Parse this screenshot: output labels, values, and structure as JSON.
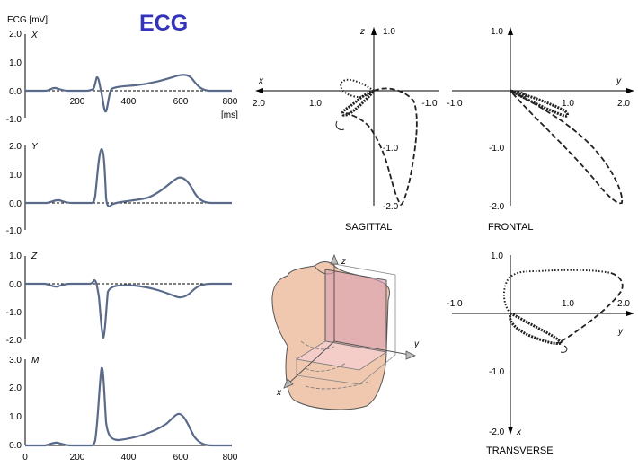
{
  "title": "ECG",
  "ecg_axis_label": "ECG [mV]",
  "time_unit": "[ms]",
  "time_ticks": [
    "0",
    "200",
    "400",
    "600",
    "800"
  ],
  "panels": [
    {
      "id": "x",
      "label": "X",
      "yticks": [
        "2.0",
        "1.0",
        "0.0",
        "-1.0"
      ],
      "show_time": true
    },
    {
      "id": "y",
      "label": "Y",
      "yticks": [
        "2.0",
        "1.0",
        "0.0",
        "-1.0"
      ],
      "show_time": false
    },
    {
      "id": "z",
      "label": "Z",
      "yticks": [
        "1.0",
        "0.0",
        "-1.0",
        "-2.0"
      ],
      "show_time": false
    },
    {
      "id": "m",
      "label": "M",
      "yticks": [
        "3.0",
        "2.0",
        "1.0",
        "0.0"
      ],
      "show_time": true
    }
  ],
  "loops": {
    "sagittal": {
      "caption": "SAGITTAL",
      "h_axis": "x",
      "v_axis": "z",
      "h_ticks": [
        "2.0",
        "1.0",
        "-1.0"
      ],
      "v_ticks": [
        "1.0",
        "-1.0",
        "-2.0"
      ]
    },
    "frontal": {
      "caption": "FRONTAL",
      "h_axis": "y",
      "v_axis": "",
      "h_ticks": [
        "-1.0",
        "1.0",
        "2.0"
      ],
      "v_ticks": [
        "1.0",
        "-1.0",
        "-2.0"
      ]
    },
    "transverse": {
      "caption": "TRANSVERSE",
      "h_axis": "y",
      "v_axis": "x",
      "h_ticks": [
        "-1.0",
        "1.0",
        "2.0"
      ],
      "v_ticks": [
        "1.0",
        "-1.0",
        "-2.0"
      ]
    }
  },
  "torso_axes": {
    "x": "x",
    "y": "y",
    "z": "z"
  },
  "colors": {
    "title": "#3333bb",
    "trace": "#5a6a8a",
    "torso_skin": "#f0c8b0",
    "torso_plane": "#d8a0b0"
  }
}
